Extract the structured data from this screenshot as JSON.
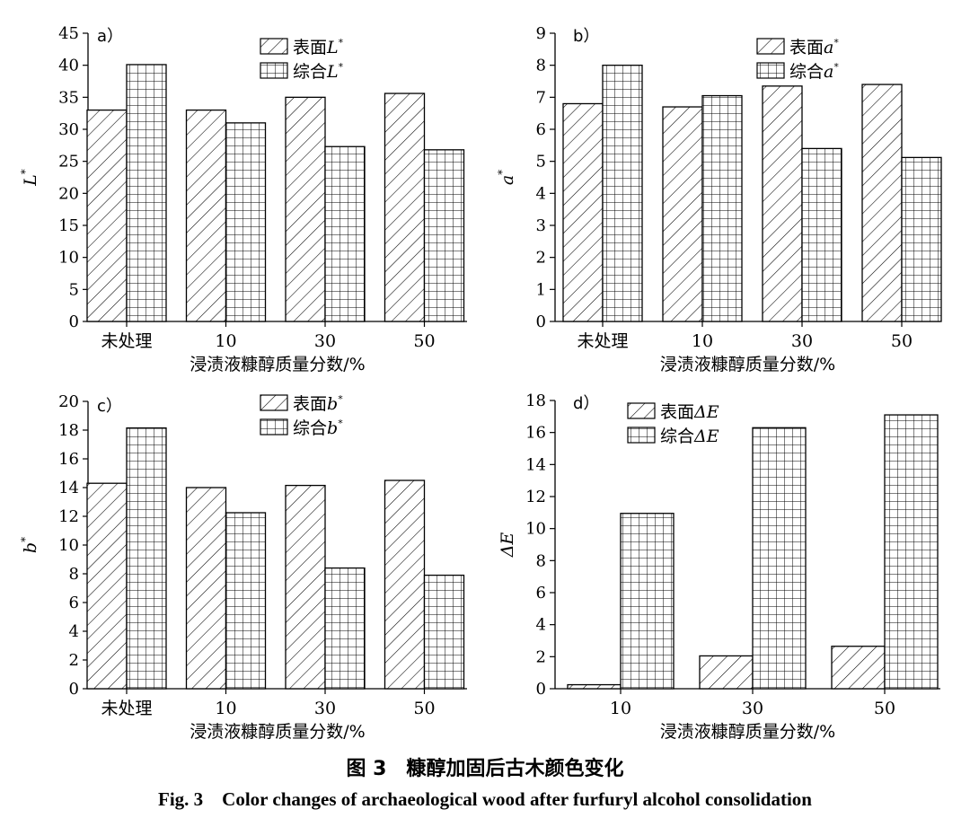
{
  "chart_data": [
    {
      "type": "bar",
      "panel_label": "a）",
      "categories": [
        "未处理",
        "10",
        "30",
        "50"
      ],
      "series": [
        {
          "name": "表面",
          "var": "L",
          "pattern": "hatch",
          "values": [
            33.0,
            33.0,
            35.0,
            35.6
          ]
        },
        {
          "name": "综合",
          "var": "L",
          "pattern": "grid",
          "values": [
            40.1,
            31.0,
            27.3,
            26.8
          ]
        }
      ],
      "ylim": [
        0,
        45
      ],
      "ytick_step": 5,
      "ylabel": "L",
      "ylabel_super": "*",
      "xlabel": "浸渍液糠醇质量分数/%"
    },
    {
      "type": "bar",
      "panel_label": "b）",
      "categories": [
        "未处理",
        "10",
        "30",
        "50"
      ],
      "series": [
        {
          "name": "表面",
          "var": "a",
          "pattern": "hatch",
          "values": [
            6.8,
            6.7,
            7.35,
            7.4
          ]
        },
        {
          "name": "综合",
          "var": "a",
          "pattern": "grid",
          "values": [
            8.0,
            7.05,
            5.4,
            5.12
          ]
        }
      ],
      "ylim": [
        0,
        9
      ],
      "ytick_step": 1,
      "ylabel": "a",
      "ylabel_super": "*",
      "xlabel": "浸渍液糠醇质量分数/%"
    },
    {
      "type": "bar",
      "panel_label": "c）",
      "categories": [
        "未处理",
        "10",
        "30",
        "50"
      ],
      "series": [
        {
          "name": "表面",
          "var": "b",
          "pattern": "hatch",
          "values": [
            14.3,
            14.0,
            14.15,
            14.5
          ]
        },
        {
          "name": "综合",
          "var": "b",
          "pattern": "grid",
          "values": [
            18.15,
            12.25,
            8.4,
            7.9
          ]
        }
      ],
      "ylim": [
        0,
        20
      ],
      "ytick_step": 2,
      "ylabel": "b",
      "ylabel_super": "*",
      "xlabel": "浸渍液糠醇质量分数/%"
    },
    {
      "type": "bar",
      "panel_label": "d）",
      "categories": [
        "10",
        "30",
        "50"
      ],
      "series": [
        {
          "name": "表面",
          "var": "ΔE",
          "pattern": "hatch",
          "values": [
            0.25,
            2.05,
            2.65
          ]
        },
        {
          "name": "综合",
          "var": "ΔE",
          "pattern": "grid",
          "values": [
            10.95,
            16.3,
            17.1
          ]
        }
      ],
      "ylim": [
        0,
        18
      ],
      "ytick_step": 2,
      "ylabel": "ΔE",
      "ylabel_super": "",
      "xlabel": "浸渍液糠醇质量分数/%"
    }
  ],
  "caption": {
    "cn": "图 3　糠醇加固后古木颜色变化",
    "en": "Fig. 3　Color changes of archaeological wood after furfuryl alcohol consolidation"
  },
  "colors": {
    "ink": "#000000",
    "fill": "#ffffff"
  }
}
